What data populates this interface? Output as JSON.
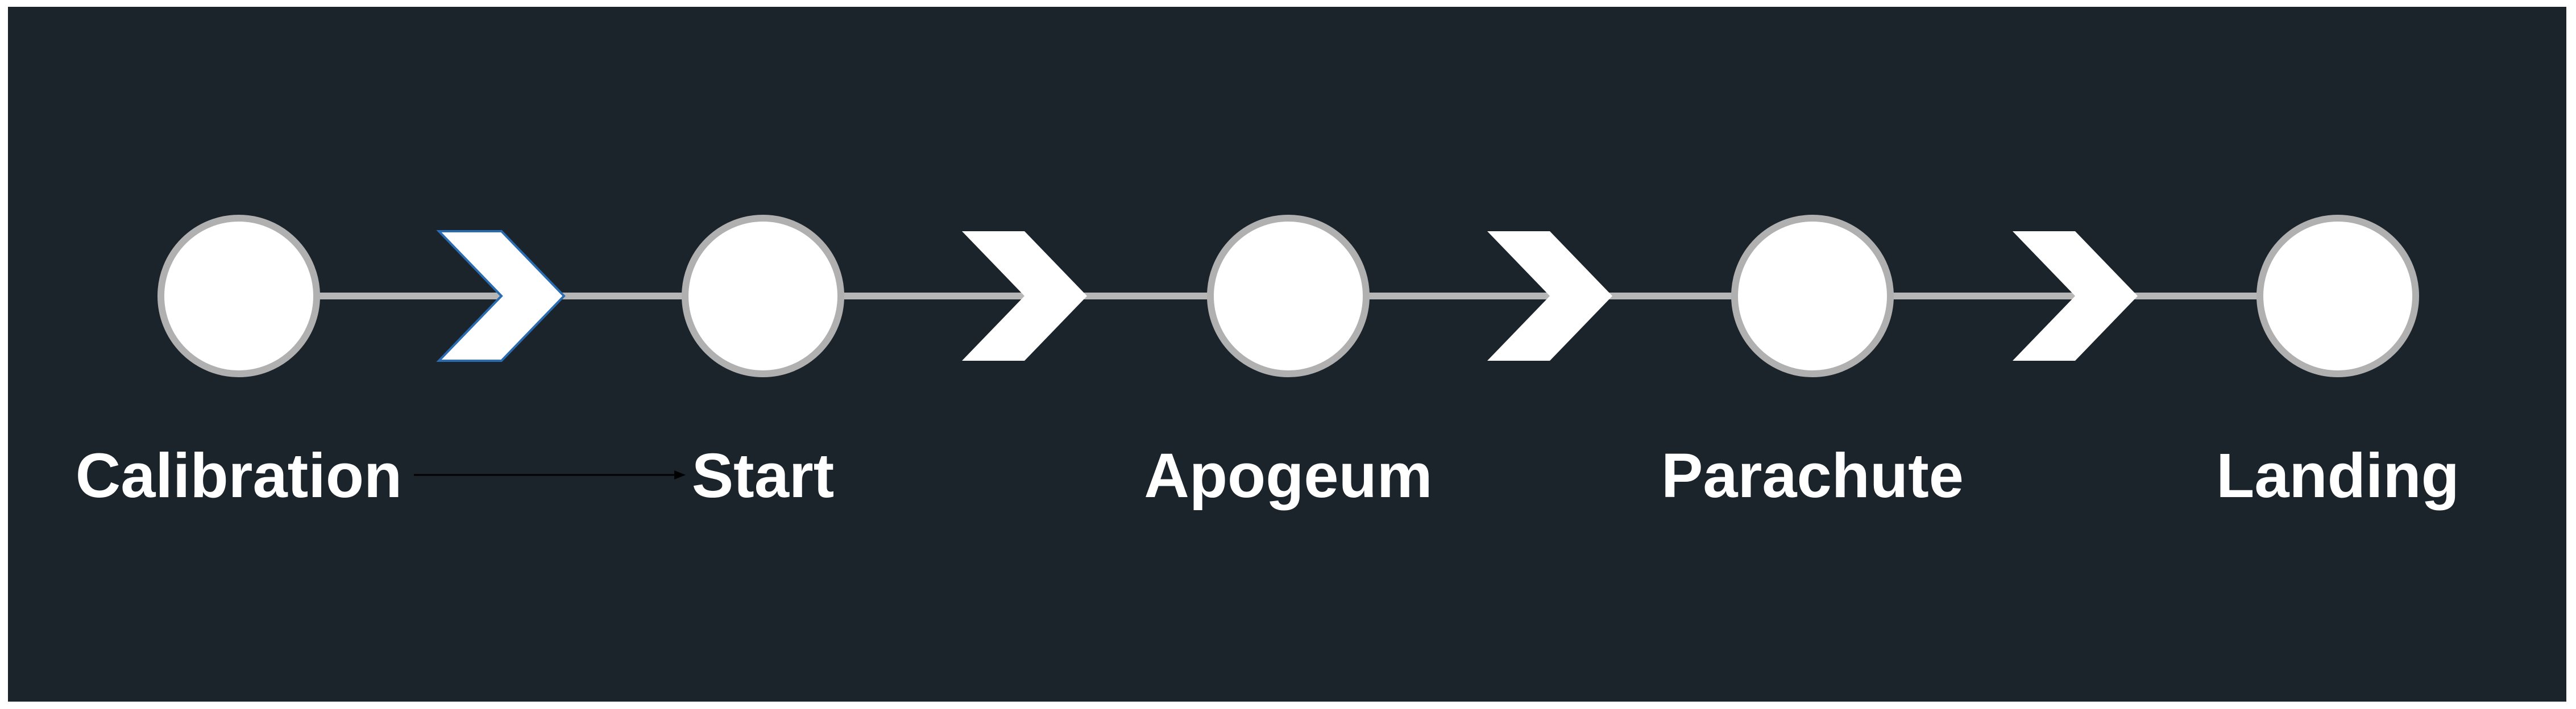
{
  "diagram": {
    "background_color": "#1b232b",
    "stage_fill": "#ffffff",
    "stage_border": "#b0b0b0",
    "connector_color": "#b6b6b6",
    "arrow_color": "#ffffff",
    "stages": [
      {
        "label": "Calibration"
      },
      {
        "label": "Start"
      },
      {
        "label": "Apogeum"
      },
      {
        "label": "Parachute"
      },
      {
        "label": "Landing"
      }
    ]
  }
}
